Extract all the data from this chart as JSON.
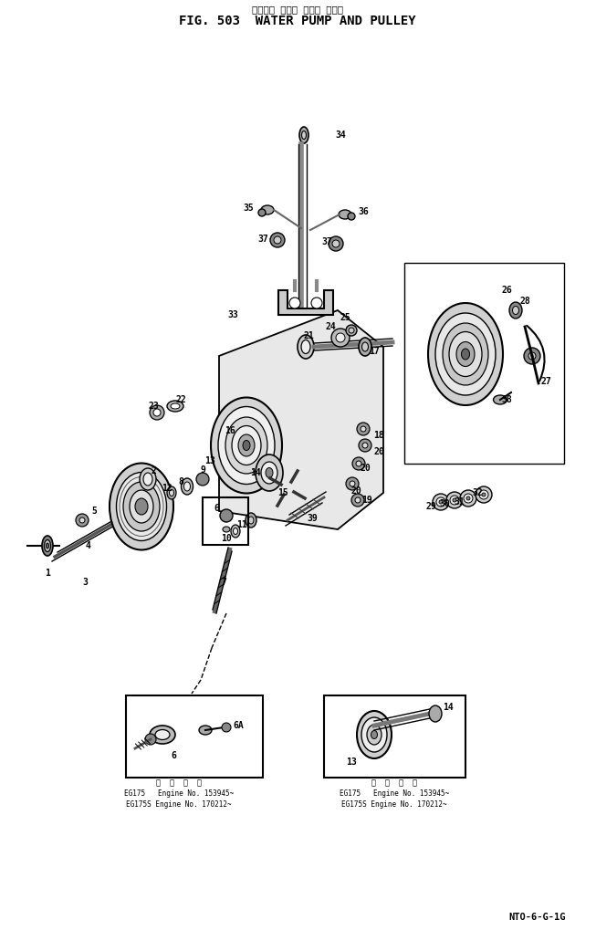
{
  "title_japanese": "ウォータ ポンプ および プーリ",
  "title_english": "FIG. 503  WATER PUMP AND PULLEY",
  "footer": "NTO-6-G-1G",
  "bg_color": "#ffffff",
  "line_color": "#000000",
  "inset1_note_japanese": "適  用  号  数",
  "inset1_note1": "EG175   Engine No. 153945~",
  "inset1_note2": "EG175S Engine No. 170212~",
  "inset2_note_japanese": "適  用  号  数",
  "inset2_note1": "EG175   Engine No. 153945~",
  "inset2_note2": "EG175S Engine No. 170212~"
}
